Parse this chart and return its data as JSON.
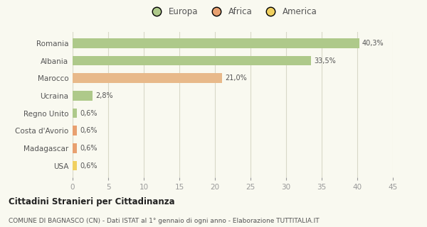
{
  "categories": [
    "Romania",
    "Albania",
    "Marocco",
    "Ucraina",
    "Regno Unito",
    "Costa d'Avorio",
    "Madagascar",
    "USA"
  ],
  "values": [
    40.3,
    33.5,
    21.0,
    2.8,
    0.6,
    0.6,
    0.6,
    0.6
  ],
  "labels": [
    "40,3%",
    "33,5%",
    "21,0%",
    "2,8%",
    "0,6%",
    "0,6%",
    "0,6%",
    "0,6%"
  ],
  "colors": [
    "#aec98a",
    "#aec98a",
    "#e8b98a",
    "#aec98a",
    "#aec98a",
    "#e8a070",
    "#e8a070",
    "#f0d060"
  ],
  "legend_labels": [
    "Europa",
    "Africa",
    "America"
  ],
  "legend_colors": [
    "#aec98a",
    "#e8a070",
    "#f0d060"
  ],
  "xlim": [
    0,
    45
  ],
  "xticks": [
    0,
    5,
    10,
    15,
    20,
    25,
    30,
    35,
    40,
    45
  ],
  "title": "Cittadini Stranieri per Cittadinanza",
  "subtitle": "COMUNE DI BAGNASCO (CN) - Dati ISTAT al 1° gennaio di ogni anno - Elaborazione TUTTITALIA.IT",
  "bg_color": "#f9f9f0",
  "grid_color": "#d8d8c8",
  "bar_height": 0.55
}
